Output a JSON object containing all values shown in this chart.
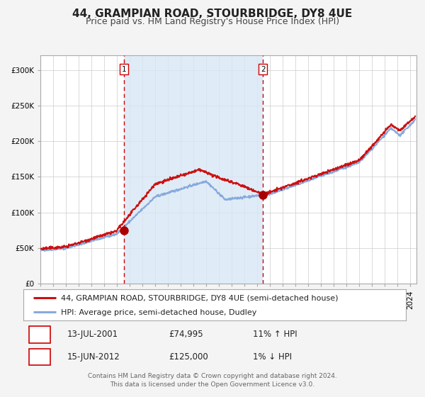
{
  "title": "44, GRAMPIAN ROAD, STOURBRIDGE, DY8 4UE",
  "subtitle": "Price paid vs. HM Land Registry's House Price Index (HPI)",
  "ylim": [
    0,
    320000
  ],
  "yticks": [
    0,
    50000,
    100000,
    150000,
    200000,
    250000,
    300000
  ],
  "ytick_labels": [
    "£0",
    "£50K",
    "£100K",
    "£150K",
    "£200K",
    "£250K",
    "£300K"
  ],
  "xlim_start": 1995.0,
  "xlim_end": 2024.5,
  "background_color": "#f4f4f4",
  "plot_bg_color": "#ffffff",
  "shaded_region_color": "#d8e8f5",
  "shaded_region_alpha": 0.8,
  "grid_color": "#cccccc",
  "sale1_x": 2001.54,
  "sale1_y": 74995,
  "sale1_label": "1",
  "sale2_x": 2012.45,
  "sale2_y": 125000,
  "sale2_label": "2",
  "sale_marker_color": "#aa0000",
  "sale_marker_size": 8,
  "vline_color": "#cc0000",
  "hpi_line_color": "#88aadd",
  "price_line_color": "#cc1111",
  "line_width": 1.4,
  "legend_label1": "44, GRAMPIAN ROAD, STOURBRIDGE, DY8 4UE (semi-detached house)",
  "legend_label2": "HPI: Average price, semi-detached house, Dudley",
  "table_row1": [
    "1",
    "13-JUL-2001",
    "£74,995",
    "11% ↑ HPI"
  ],
  "table_row2": [
    "2",
    "15-JUN-2012",
    "£125,000",
    "1% ↓ HPI"
  ],
  "footer_text1": "Contains HM Land Registry data © Crown copyright and database right 2024.",
  "footer_text2": "This data is licensed under the Open Government Licence v3.0.",
  "title_fontsize": 11,
  "subtitle_fontsize": 9,
  "tick_fontsize": 7.5,
  "legend_fontsize": 8,
  "footer_fontsize": 6.5
}
